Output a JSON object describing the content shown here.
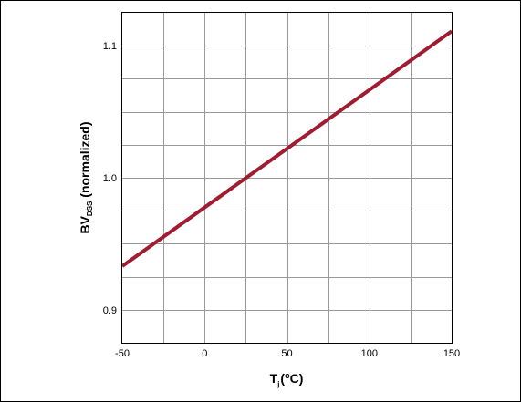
{
  "chart_data": {
    "type": "line",
    "x_axis": {
      "label_main": "T",
      "label_sub": "j",
      "label_paren_open": "(",
      "label_sup": "o",
      "label_unit": "C)",
      "ticks": [
        "-50",
        "0",
        "50",
        "100",
        "150"
      ],
      "tick_values": [
        -50,
        0,
        50,
        100,
        150
      ],
      "range": [
        -50,
        150
      ]
    },
    "y_axis": {
      "label_main": "BV",
      "label_sub": "DSS",
      "label_rest": " (normalized)",
      "ticks": [
        "0.9",
        "1.0",
        "1.1"
      ],
      "tick_values": [
        0.9,
        1.0,
        1.1
      ],
      "range": [
        0.875,
        1.125
      ]
    },
    "grid": true,
    "series": [
      {
        "color": "#a01c30",
        "x": [
          -50,
          150
        ],
        "y": [
          0.933,
          1.111
        ]
      }
    ]
  }
}
